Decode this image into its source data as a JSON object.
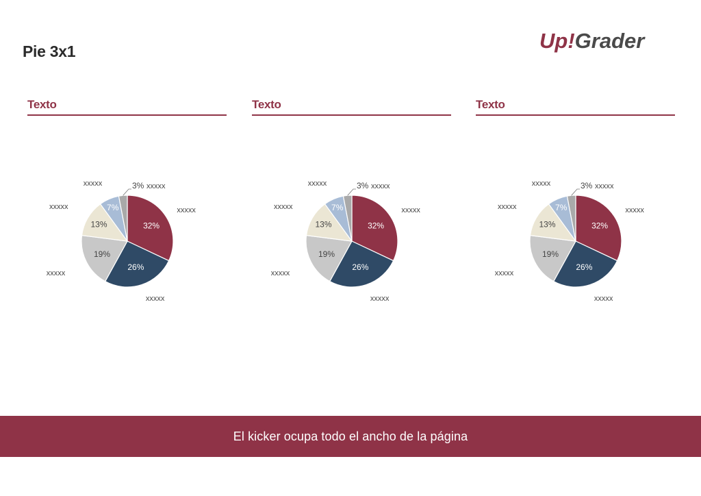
{
  "page": {
    "title": "Pie 3x1",
    "logo": {
      "prefix": "Up",
      "bang": "!",
      "suffix": "Grader",
      "accent_color": "#8f3347",
      "text_color": "#4a4a4a"
    },
    "kicker": "El kicker ocupa todo el ancho de la página"
  },
  "colors": {
    "accent": "#8f3347",
    "navy": "#2f4a66",
    "gray": "#c8c8c8",
    "cream": "#ebe6d4",
    "lightblue": "#a8bcd6",
    "darkgray": "#a9a9a9"
  },
  "chart_data": [
    {
      "type": "pie",
      "title": "Texto",
      "slices": [
        {
          "label": "xxxxx",
          "value": 32,
          "display": "32%",
          "color": "#8f3347"
        },
        {
          "label": "xxxxx",
          "value": 26,
          "display": "26%",
          "color": "#2f4a66"
        },
        {
          "label": "xxxxx",
          "value": 19,
          "display": "19%",
          "color": "#c8c8c8"
        },
        {
          "label": "xxxxx",
          "value": 13,
          "display": "13%",
          "color": "#ebe6d4"
        },
        {
          "label": "xxxxx",
          "value": 7,
          "display": "7%",
          "color": "#a8bcd6"
        },
        {
          "label": "xxxxx",
          "value": 3,
          "display": "3%",
          "color": "#a9a9a9"
        }
      ]
    },
    {
      "type": "pie",
      "title": "Texto",
      "slices": [
        {
          "label": "xxxxx",
          "value": 32,
          "display": "32%",
          "color": "#8f3347"
        },
        {
          "label": "xxxxx",
          "value": 26,
          "display": "26%",
          "color": "#2f4a66"
        },
        {
          "label": "xxxxx",
          "value": 19,
          "display": "19%",
          "color": "#c8c8c8"
        },
        {
          "label": "xxxxx",
          "value": 13,
          "display": "13%",
          "color": "#ebe6d4"
        },
        {
          "label": "xxxxx",
          "value": 7,
          "display": "7%",
          "color": "#a8bcd6"
        },
        {
          "label": "xxxxx",
          "value": 3,
          "display": "3%",
          "color": "#a9a9a9"
        }
      ]
    },
    {
      "type": "pie",
      "title": "Texto",
      "slices": [
        {
          "label": "xxxxx",
          "value": 32,
          "display": "32%",
          "color": "#8f3347"
        },
        {
          "label": "xxxxx",
          "value": 26,
          "display": "26%",
          "color": "#2f4a66"
        },
        {
          "label": "xxxxx",
          "value": 19,
          "display": "19%",
          "color": "#c8c8c8"
        },
        {
          "label": "xxxxx",
          "value": 13,
          "display": "13%",
          "color": "#ebe6d4"
        },
        {
          "label": "xxxxx",
          "value": 7,
          "display": "7%",
          "color": "#a8bcd6"
        },
        {
          "label": "xxxxx",
          "value": 3,
          "display": "3%",
          "color": "#a9a9a9"
        }
      ]
    }
  ]
}
